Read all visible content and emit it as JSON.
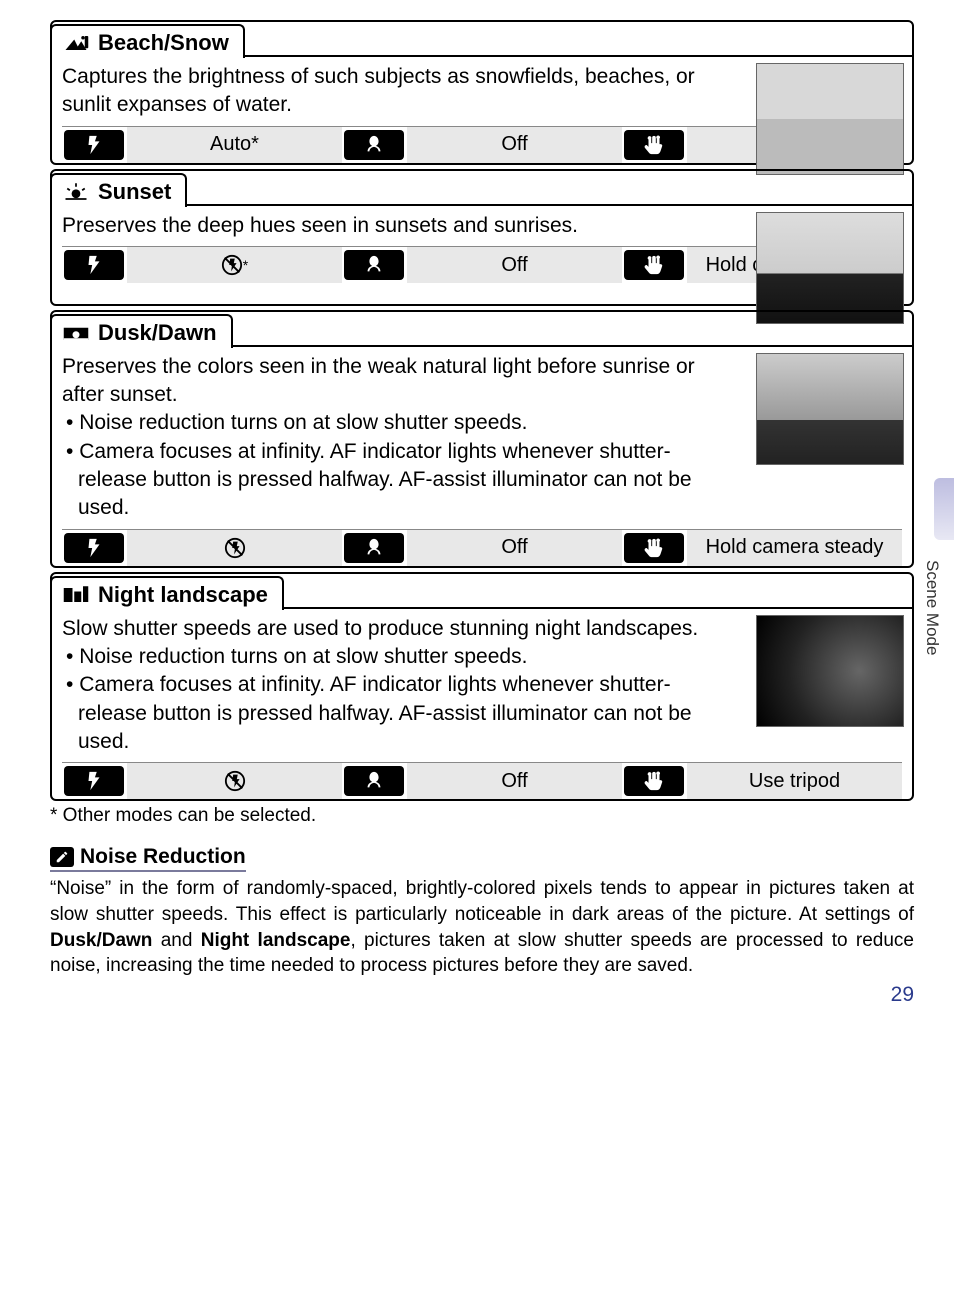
{
  "scenes": [
    {
      "icon_name": "beach-snow-icon",
      "title": "Beach/Snow",
      "desc_html": "Captures the brightness of such subjects as snowfields, beaches, or sunlit expanses of water.",
      "bullets": [],
      "thumb_class": "beach",
      "flash": "Auto*",
      "flash_is_icon": false,
      "macro": "Off",
      "vr": "—"
    },
    {
      "icon_name": "sunset-icon",
      "title": "Sunset",
      "desc_html": "Preserves the deep hues seen in sunsets and sunrises.",
      "bullets": [],
      "thumb_class": "sunset",
      "flash": "noflash*",
      "flash_is_icon": true,
      "macro": "Off",
      "vr": "Hold camera steady"
    },
    {
      "icon_name": "dusk-dawn-icon",
      "title": "Dusk/Dawn",
      "desc_html": "Preserves the colors seen in the weak natural light before sunrise or after sunset.",
      "bullets": [
        "Noise reduction turns on at slow shutter speeds.",
        "Camera focuses at infinity.  AF indicator lights whenever shutter-release button is pressed halfway.  AF-assist illuminator can not be used."
      ],
      "thumb_class": "dusk",
      "flash": "noflash",
      "flash_is_icon": true,
      "macro": "Off",
      "vr": "Hold camera steady"
    },
    {
      "icon_name": "night-landscape-icon",
      "title": "Night landscape",
      "desc_html": "Slow shutter speeds are used to produce stunning night landscapes.",
      "bullets": [
        "Noise reduction turns on at slow shutter speeds.",
        "Camera focuses at infinity.  AF indicator lights whenever shutter-release button is pressed halfway.  AF-assist illuminator can not be used."
      ],
      "thumb_class": "night",
      "flash": "noflash",
      "flash_is_icon": true,
      "macro": "Off",
      "vr": "Use tripod"
    }
  ],
  "footnote": "* Other modes can be selected.",
  "note": {
    "title": "Noise Reduction",
    "body_pre": "“Noise” in the form of randomly-spaced, brightly-colored pixels tends to appear in pictures taken at slow shutter speeds.  This effect is particularly noticeable in dark areas of the picture.  At settings of ",
    "bold1": "Dusk/Dawn",
    "mid": " and ",
    "bold2": "Night landscape",
    "body_post": ", pictures taken at slow shutter speeds are processed to reduce noise, increasing the time needed to process pictures before they are saved."
  },
  "side_label": "Scene Mode",
  "page_number": "29",
  "colors": {
    "page_num": "#2a3a8c",
    "cell_bg": "#e8e8e8",
    "icon_bg": "#000000"
  },
  "icons": {
    "flash": "⚡",
    "macro": "🌷",
    "hand": "✋"
  }
}
